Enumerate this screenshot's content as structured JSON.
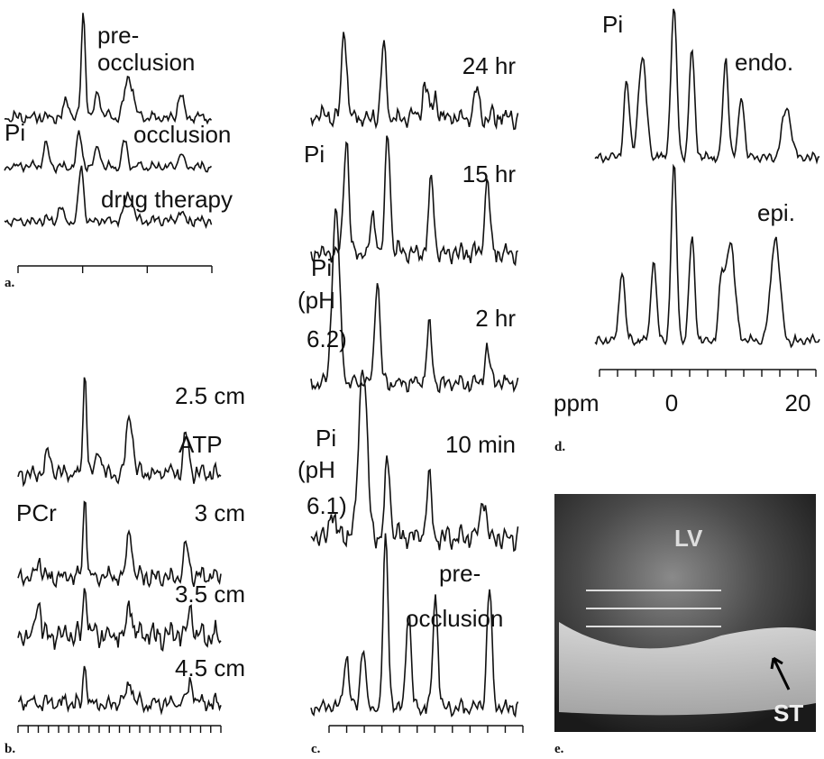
{
  "panel_a": {
    "label": "a.",
    "texts": [
      "pre-",
      "occlusion",
      "Pi",
      "occlusion",
      "drug therapy"
    ]
  },
  "panel_b": {
    "label": "b.",
    "texts": [
      "2.5 cm",
      "ATP",
      "PCr",
      "3 cm",
      "3.5 cm",
      "4.5 cm"
    ]
  },
  "panel_c": {
    "label": "c.",
    "texts": [
      "24 hr",
      "Pi",
      "15 hr",
      "Pi",
      "(pH",
      "6.2)",
      "2 hr",
      "Pi",
      "(pH",
      "6.1)",
      "10 min",
      "pre-",
      "occlusion"
    ]
  },
  "panel_d": {
    "label": "d.",
    "texts": [
      "Pi",
      "endo.",
      "epi."
    ],
    "axis_labels": [
      "ppm",
      "0",
      "20"
    ]
  },
  "panel_e": {
    "label": "e.",
    "texts": [
      "LV",
      "ST"
    ]
  }
}
